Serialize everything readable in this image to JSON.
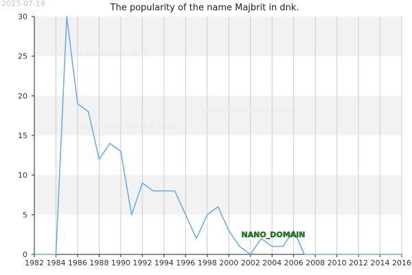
{
  "header": {
    "date_stamp": "2023-07-19",
    "title": "The popularity of the name Majbrit in dnk."
  },
  "watermark": {
    "text": "Names of the World © 2023"
  },
  "annotation": {
    "label": "NANO_DOMAIN"
  },
  "colors": {
    "line": "#6aaee8",
    "band": "#f2f2f2",
    "grid": "#cccccc",
    "axis": "#222222"
  },
  "chart_data": {
    "type": "line",
    "title": "The popularity of the name Majbrit in dnk.",
    "xlabel": "",
    "ylabel": "",
    "xlim": [
      1982,
      2016
    ],
    "ylim": [
      0,
      30
    ],
    "x_ticks": [
      "1982",
      "1984",
      "1986",
      "1988",
      "1990",
      "1992",
      "1994",
      "1996",
      "1998",
      "2000",
      "2002",
      "2004",
      "2006",
      "2008",
      "2010",
      "2012",
      "2014",
      "2016"
    ],
    "y_ticks": [
      "0",
      "5",
      "10",
      "15",
      "20",
      "25",
      "30"
    ],
    "grid": true,
    "legend": "none",
    "series": [
      {
        "x": [
          1982,
          1983,
          1984,
          1985,
          1986,
          1987,
          1988,
          1989,
          1990,
          1991,
          1992,
          1993,
          1994,
          1995,
          1996,
          1997,
          1998,
          1999,
          2000,
          2001,
          2002,
          2003,
          2004,
          2005,
          2006,
          2007,
          2008,
          2009,
          2010,
          2011,
          2012,
          2013,
          2014,
          2015,
          2016
        ],
        "values": [
          0,
          0,
          0,
          30,
          19,
          18,
          12,
          14,
          13,
          5,
          9,
          8,
          8,
          8,
          5,
          2,
          5,
          6,
          3,
          1,
          0,
          2,
          1,
          1,
          3,
          0,
          0,
          0,
          0,
          0,
          0,
          0,
          0,
          0,
          0
        ]
      }
    ]
  }
}
